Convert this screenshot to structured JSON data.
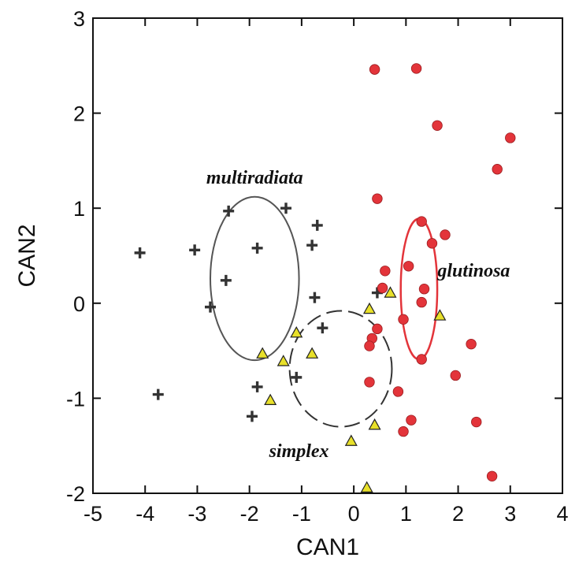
{
  "chart_data": {
    "type": "scatter",
    "xlabel": "CAN1",
    "ylabel": "CAN2",
    "xlim": [
      -5,
      4
    ],
    "ylim": [
      -2,
      3
    ],
    "xticks": [
      "-5",
      "-4",
      "-3",
      "-2",
      "-1",
      "0",
      "1",
      "2",
      "3",
      "4"
    ],
    "yticks": [
      "-2",
      "-1",
      "0",
      "1",
      "2",
      "3"
    ],
    "grid": false,
    "series": [
      {
        "name": "multiradiata",
        "marker": "plus",
        "color": "#333333",
        "label_at": [
          -1.9,
          1.26
        ],
        "ellipse": {
          "cx": -1.9,
          "cy": 0.26,
          "rx": 0.85,
          "ry": 0.86,
          "color": "#555555",
          "dash": false
        },
        "points": [
          {
            "x": -4.1,
            "y": 0.53
          },
          {
            "x": -3.75,
            "y": -0.96
          },
          {
            "x": -3.05,
            "y": 0.56
          },
          {
            "x": -2.75,
            "y": -0.04
          },
          {
            "x": -2.45,
            "y": 0.24
          },
          {
            "x": -2.4,
            "y": 0.97
          },
          {
            "x": -1.85,
            "y": 0.58
          },
          {
            "x": -1.95,
            "y": -1.19
          },
          {
            "x": -1.85,
            "y": -0.88
          },
          {
            "x": -1.3,
            "y": 1.0
          },
          {
            "x": -1.1,
            "y": -0.78
          },
          {
            "x": -0.8,
            "y": 0.61
          },
          {
            "x": -0.75,
            "y": 0.06
          },
          {
            "x": -0.7,
            "y": 0.82
          },
          {
            "x": -0.6,
            "y": -0.26
          },
          {
            "x": 0.45,
            "y": 0.11
          }
        ]
      },
      {
        "name": "simplex",
        "marker": "triangle",
        "color": "#e8e02a",
        "label_at": [
          -1.05,
          -1.62
        ],
        "ellipse": {
          "cx": -0.25,
          "cy": -0.69,
          "rx": 0.98,
          "ry": 0.61,
          "color": "#333333",
          "dash": true
        },
        "points": [
          {
            "x": -1.75,
            "y": -0.53
          },
          {
            "x": -1.35,
            "y": -0.61
          },
          {
            "x": -1.6,
            "y": -1.02
          },
          {
            "x": -1.1,
            "y": -0.31
          },
          {
            "x": -0.8,
            "y": -0.53
          },
          {
            "x": 0.3,
            "y": -0.06
          },
          {
            "x": 0.7,
            "y": 0.11
          },
          {
            "x": -0.05,
            "y": -1.45
          },
          {
            "x": 0.4,
            "y": -1.28
          },
          {
            "x": 0.25,
            "y": -1.94
          },
          {
            "x": 1.65,
            "y": -0.13
          }
        ]
      },
      {
        "name": "glutinosa",
        "marker": "circle",
        "color": "#e3343a",
        "label_at": [
          2.3,
          0.28
        ],
        "ellipse": {
          "cx": 1.25,
          "cy": 0.15,
          "rx": 0.35,
          "ry": 0.74,
          "color": "#e3343a",
          "dash": false
        },
        "points": [
          {
            "x": 0.4,
            "y": 2.46
          },
          {
            "x": 1.2,
            "y": 2.47
          },
          {
            "x": 1.6,
            "y": 1.87
          },
          {
            "x": 3.0,
            "y": 1.74
          },
          {
            "x": 2.75,
            "y": 1.41
          },
          {
            "x": 0.45,
            "y": 1.1
          },
          {
            "x": 1.3,
            "y": 0.86
          },
          {
            "x": 1.75,
            "y": 0.72
          },
          {
            "x": 1.5,
            "y": 0.63
          },
          {
            "x": 1.05,
            "y": 0.39
          },
          {
            "x": 0.6,
            "y": 0.34
          },
          {
            "x": 0.55,
            "y": 0.16
          },
          {
            "x": 1.35,
            "y": 0.15
          },
          {
            "x": 1.3,
            "y": 0.01
          },
          {
            "x": 0.95,
            "y": -0.17
          },
          {
            "x": 0.45,
            "y": -0.27
          },
          {
            "x": 0.35,
            "y": -0.37
          },
          {
            "x": 0.3,
            "y": -0.45
          },
          {
            "x": 2.25,
            "y": -0.43
          },
          {
            "x": 1.3,
            "y": -0.59
          },
          {
            "x": 1.95,
            "y": -0.76
          },
          {
            "x": 0.3,
            "y": -0.83
          },
          {
            "x": 0.85,
            "y": -0.93
          },
          {
            "x": 1.1,
            "y": -1.23
          },
          {
            "x": 2.35,
            "y": -1.25
          },
          {
            "x": 0.95,
            "y": -1.35
          },
          {
            "x": 2.65,
            "y": -1.82
          }
        ]
      }
    ]
  }
}
